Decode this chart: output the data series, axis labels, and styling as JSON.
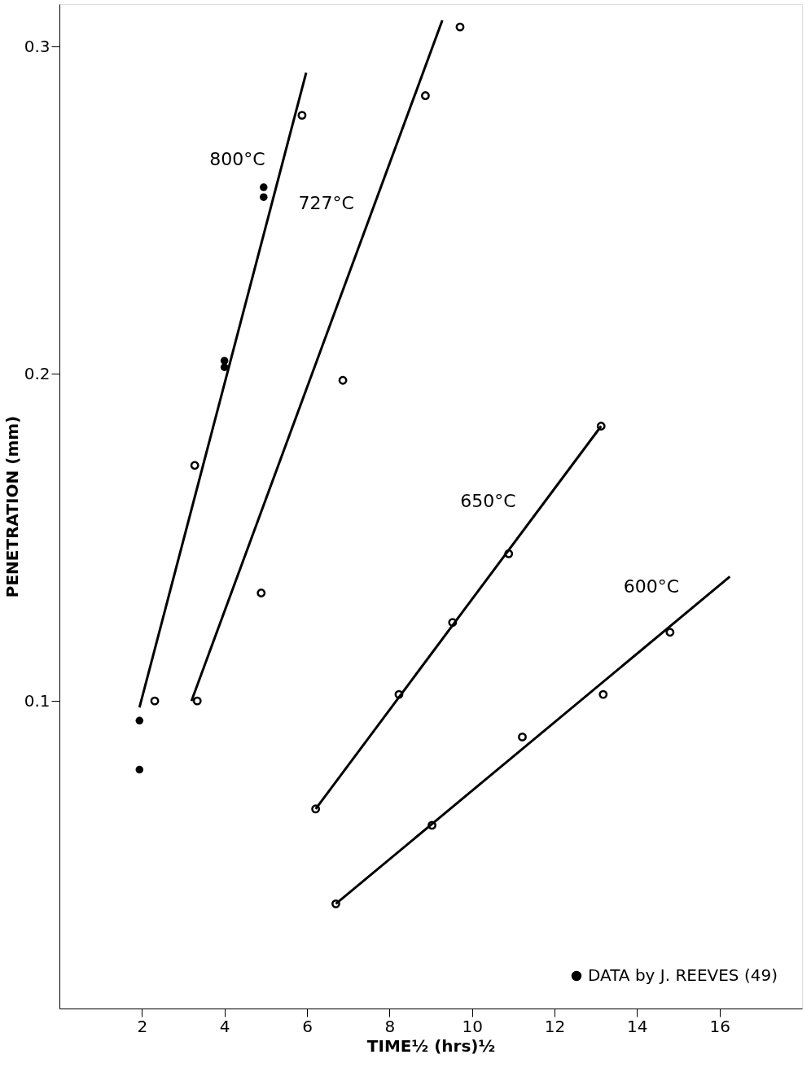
{
  "chart_data": {
    "type": "scatter",
    "xlabel": "TIME½ (hrs)½",
    "ylabel": "PENETRATION (mm)",
    "xlim": [
      0,
      18
    ],
    "ylim": [
      0.006,
      0.313
    ],
    "xticks": [
      2,
      4,
      6,
      8,
      10,
      12,
      14,
      16
    ],
    "yticks": [
      0.1,
      0.2,
      0.3
    ],
    "grid": false,
    "legend": "bottom right",
    "series": [
      {
        "type": "line",
        "color": "#000000",
        "marker": "none",
        "x": [
          1.94,
          5.98
        ],
        "values": [
          0.098,
          0.292
        ]
      },
      {
        "type": "line",
        "color": "#000000",
        "marker": "none",
        "x": [
          3.2,
          9.28
        ],
        "values": [
          0.1,
          0.308
        ]
      },
      {
        "type": "line",
        "color": "#000000",
        "marker": "none",
        "x": [
          6.21,
          13.13
        ],
        "values": [
          0.067,
          0.184
        ]
      },
      {
        "type": "line",
        "color": "#000000",
        "marker": "none",
        "x": [
          6.7,
          16.25
        ],
        "values": [
          0.038,
          0.138
        ]
      },
      {
        "color": "#000000",
        "marker": "circle",
        "x": [
          2.31,
          3.28,
          5.88,
          3.34,
          4.89,
          6.87,
          8.87,
          9.71,
          6.21,
          8.23,
          9.53,
          10.89,
          13.13,
          6.7,
          9.03,
          11.22,
          13.18,
          14.8
        ],
        "values": [
          0.1,
          0.172,
          0.279,
          0.1,
          0.133,
          0.198,
          0.285,
          0.306,
          0.067,
          0.102,
          0.124,
          0.145,
          0.184,
          0.038,
          0.062,
          0.089,
          0.102,
          0.121
        ]
      },
      {
        "name": "DATA by J. REEVES (49)",
        "color": "#000000",
        "marker": "circle",
        "x": [
          1.94,
          1.94,
          4.0,
          4.0,
          4.95,
          4.95
        ],
        "values": [
          0.094,
          0.079,
          0.204,
          0.202,
          0.257,
          0.254
        ]
      }
    ],
    "annotations": [
      {
        "text": "800°C",
        "x": 5.3,
        "y": 0.259
      },
      {
        "text": "727°C",
        "x": 7.46,
        "y": 0.2457
      },
      {
        "text": "650°C",
        "x": 11.38,
        "y": 0.1544
      },
      {
        "text": "600°C",
        "x": 15.34,
        "y": 0.1285
      }
    ]
  }
}
